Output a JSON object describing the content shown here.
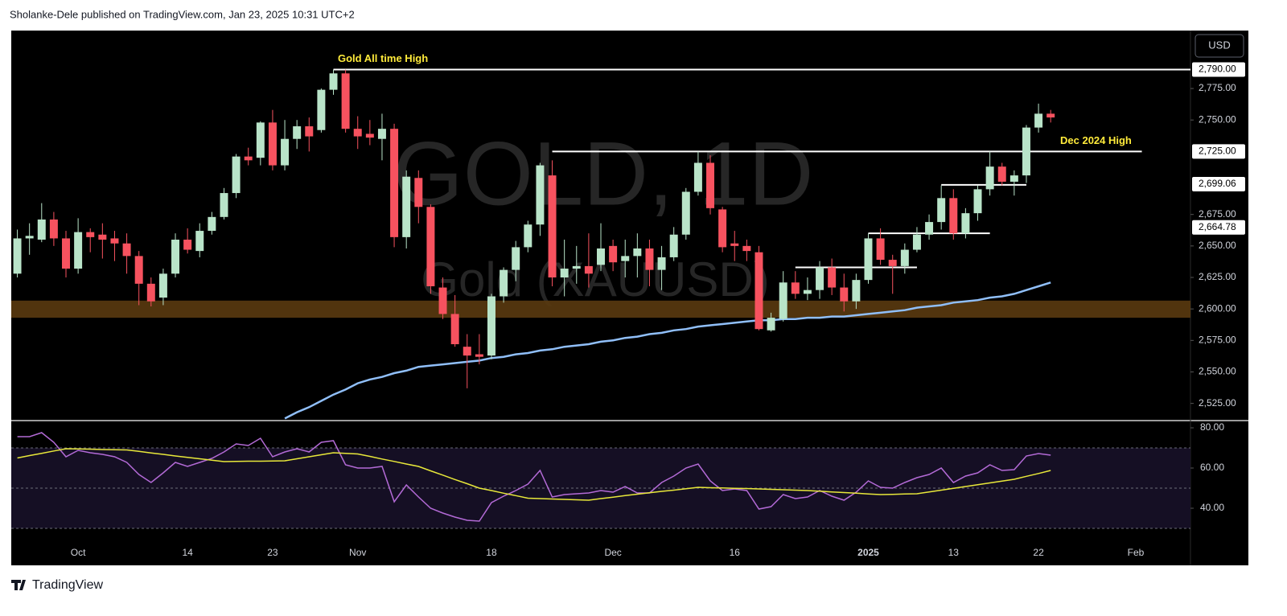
{
  "header": {
    "text": "Sholanke-Dele published on TradingView.com, Jan 23, 2025 10:31 UTC+2"
  },
  "footer": {
    "brand": "TradingView"
  },
  "currency_button": "USD",
  "chart_data": [
    {
      "type": "candlestick",
      "watermark_title": "GOLD, 1D",
      "watermark_subtitle": "Gold (XAUUSD)",
      "categories": [
        null,
        null,
        null,
        null,
        null,
        "Oct",
        null,
        null,
        null,
        null,
        null,
        null,
        null,
        null,
        "14",
        null,
        null,
        null,
        null,
        null,
        null,
        "23",
        null,
        null,
        null,
        null,
        null,
        null,
        "Nov",
        null,
        null,
        null,
        null,
        null,
        null,
        null,
        null,
        null,
        null,
        "18",
        null,
        null,
        null,
        null,
        null,
        null,
        null,
        null,
        null,
        "Dec",
        null,
        null,
        null,
        null,
        null,
        null,
        null,
        null,
        null,
        "16",
        null,
        null,
        null,
        null,
        null,
        null,
        null,
        null,
        null,
        null,
        "2025",
        null,
        null,
        null,
        null,
        null,
        null,
        "13",
        null,
        null,
        null,
        null,
        null,
        null,
        "22",
        null,
        null,
        null,
        null,
        null,
        null,
        null,
        "Feb",
        null,
        null,
        null,
        null
      ],
      "open": [
        2628,
        2656,
        2655,
        2671,
        2656,
        2632,
        2661,
        2659,
        2656,
        2652,
        2642,
        2620,
        2609,
        2628,
        2655,
        2646,
        2662,
        2673,
        2692,
        2721,
        2720,
        2748,
        2714,
        2735,
        2745,
        2742,
        2774,
        2787,
        2743,
        2739,
        2735,
        2743,
        2657,
        2704,
        2681,
        2617,
        2596,
        2570,
        2564,
        2563,
        2610,
        2631,
        2649,
        2667,
        2706,
        2625,
        2632,
        2634,
        2635,
        2650,
        2638,
        2642,
        2648,
        2631,
        2641,
        2659,
        2693,
        2716,
        2679,
        2652,
        2650,
        2645,
        2583,
        2592,
        2621,
        2612,
        2615,
        2633,
        2617,
        2606,
        2623,
        2656,
        2639,
        2634,
        2647,
        2659,
        2669,
        2688,
        2660,
        2676,
        2695,
        2713,
        2701,
        2706,
        2744,
        2755,
        null,
        null,
        null,
        null,
        null,
        null,
        null,
        null,
        null,
        null,
        null
      ],
      "high": [
        2663,
        2668,
        2684,
        2677,
        2662,
        2672,
        2664,
        2668,
        2662,
        2660,
        2646,
        2625,
        2632,
        2660,
        2664,
        2668,
        2677,
        2696,
        2723,
        2728,
        2749,
        2758,
        2750,
        2750,
        2752,
        2775,
        2790,
        2790,
        2753,
        2750,
        2755,
        2747,
        2710,
        2710,
        2683,
        2625,
        2611,
        2580,
        2580,
        2612,
        2633,
        2654,
        2670,
        2716,
        2718,
        2655,
        2650,
        2660,
        2668,
        2655,
        2655,
        2660,
        2655,
        2650,
        2665,
        2696,
        2725,
        2722,
        2681,
        2662,
        2655,
        2650,
        2597,
        2630,
        2630,
        2625,
        2638,
        2640,
        2628,
        2628,
        2660,
        2664,
        2643,
        2652,
        2665,
        2675,
        2698,
        2695,
        2680,
        2698,
        2725,
        2716,
        2710,
        2746,
        2763,
        2758,
        null,
        null,
        null,
        null,
        null,
        null,
        null,
        null,
        null,
        null,
        null
      ],
      "low": [
        2625,
        2643,
        2653,
        2650,
        2625,
        2628,
        2645,
        2640,
        2638,
        2628,
        2603,
        2602,
        2603,
        2625,
        2644,
        2641,
        2659,
        2671,
        2688,
        2714,
        2714,
        2710,
        2710,
        2727,
        2725,
        2740,
        2770,
        2740,
        2727,
        2730,
        2718,
        2649,
        2648,
        2668,
        2612,
        2592,
        2570,
        2537,
        2556,
        2560,
        2605,
        2622,
        2645,
        2658,
        2618,
        2610,
        2620,
        2617,
        2630,
        2630,
        2625,
        2625,
        2618,
        2615,
        2638,
        2655,
        2690,
        2675,
        2645,
        2638,
        2638,
        2583,
        2582,
        2590,
        2608,
        2607,
        2608,
        2611,
        2598,
        2600,
        2620,
        2635,
        2612,
        2628,
        2645,
        2655,
        2663,
        2655,
        2656,
        2670,
        2690,
        2698,
        2690,
        2700,
        2740,
        2748,
        null,
        null,
        null,
        null,
        null,
        null,
        null,
        null,
        null,
        null,
        null
      ],
      "close": [
        2656,
        2658,
        2671,
        2656,
        2632,
        2661,
        2657,
        2655,
        2652,
        2642,
        2620,
        2606,
        2628,
        2655,
        2647,
        2662,
        2673,
        2692,
        2721,
        2718,
        2748,
        2714,
        2735,
        2745,
        2737,
        2774,
        2787,
        2743,
        2737,
        2736,
        2743,
        2657,
        2705,
        2681,
        2618,
        2596,
        2572,
        2563,
        2562,
        2610,
        2631,
        2649,
        2667,
        2714,
        2625,
        2632,
        2634,
        2628,
        2648,
        2637,
        2642,
        2648,
        2631,
        2641,
        2659,
        2693,
        2716,
        2680,
        2649,
        2650,
        2646,
        2584,
        2593,
        2621,
        2612,
        2615,
        2633,
        2617,
        2606,
        2623,
        2656,
        2639,
        2634,
        2647,
        2659,
        2669,
        2688,
        2660,
        2676,
        2695,
        2713,
        2701,
        2706,
        2744,
        2755,
        2752,
        null,
        null,
        null,
        null,
        null,
        null,
        null,
        null,
        null,
        null,
        null
      ],
      "up_color": "#b9e4c9",
      "down_color": "#f7525f",
      "moving_average": {
        "color": "#90bff9",
        "values": [
          null,
          null,
          null,
          null,
          null,
          null,
          null,
          null,
          null,
          null,
          null,
          null,
          null,
          null,
          null,
          null,
          null,
          null,
          null,
          null,
          null,
          null,
          2513,
          2518,
          2522,
          2527,
          2532,
          2536,
          2541,
          2544,
          2546,
          2549,
          2551,
          2554,
          2555,
          2556,
          2557,
          2558,
          2559,
          2561,
          2562,
          2564,
          2565,
          2567,
          2568,
          2570,
          2571,
          2572,
          2574,
          2575,
          2577,
          2578,
          2580,
          2581,
          2583,
          2584,
          2586,
          2587,
          2588,
          2589,
          2590,
          2591,
          2591,
          2592,
          2592,
          2593,
          2593,
          2594,
          2594,
          2595,
          2596,
          2597,
          2598,
          2599,
          2601,
          2602,
          2603,
          2605,
          2606,
          2607,
          2609,
          2610,
          2612,
          2615,
          2618,
          2621,
          null,
          null,
          null,
          null,
          null,
          null,
          null,
          null,
          null,
          null,
          null
        ]
      },
      "ylim": [
        2512,
        2821
      ],
      "yticks": [
        {
          "value": 2525,
          "label": "2,525.00"
        },
        {
          "value": 2550,
          "label": "2,550.00"
        },
        {
          "value": 2575,
          "label": "2,575.00"
        },
        {
          "value": 2600,
          "label": "2,600.00"
        },
        {
          "value": 2625,
          "label": "2,625.00"
        },
        {
          "value": 2650,
          "label": "2,650.00"
        },
        {
          "value": 2675,
          "label": "2,675.00"
        },
        {
          "value": 2750,
          "label": "2,750.00"
        },
        {
          "value": 2775,
          "label": "2,775.00"
        }
      ],
      "levels": [
        {
          "value": 2790,
          "label": "2,790.00"
        },
        {
          "value": 2725,
          "label": "2,725.00"
        },
        {
          "value": 2699.06,
          "label": "2,699.06"
        },
        {
          "value": 2664.78,
          "label": "2,664.78"
        }
      ],
      "lines": [
        2790,
        2725,
        2698.5,
        2660,
        2633
      ],
      "zone": {
        "from": 2593,
        "to": 2606.6,
        "color": "#5a3a10"
      },
      "annotations": [
        {
          "text": "Gold All time High",
          "value": 2790
        },
        {
          "text": "Dec 2024 High",
          "value": 2725
        }
      ],
      "grid": false
    },
    {
      "type": "line",
      "series": [
        {
          "name": "RSI",
          "color": "#b36ad6",
          "values": [
            75.6,
            75.6,
            77.6,
            72.8,
            65.6,
            68.8,
            67.6,
            66.8,
            65.6,
            62.8,
            56.8,
            52.8,
            57.6,
            62.8,
            60.8,
            62.8,
            64.8,
            68,
            72,
            71.2,
            74.8,
            65.6,
            68,
            69.6,
            68,
            72.8,
            73.6,
            61.6,
            60,
            60,
            60.8,
            43.2,
            51.6,
            45.6,
            40,
            37.6,
            35.6,
            34,
            33.6,
            42.8,
            46,
            48.8,
            52,
            58.8,
            45.6,
            46.8,
            47.2,
            47.6,
            48.8,
            48,
            50.8,
            47.6,
            47.6,
            52.8,
            56,
            60,
            62,
            53.6,
            48.8,
            49.6,
            48.8,
            39.6,
            40.8,
            46.8,
            44.8,
            45.6,
            48.8,
            46,
            44,
            48,
            53.6,
            50.4,
            50,
            52.8,
            55.2,
            56.8,
            60,
            52.8,
            56,
            57.6,
            61.6,
            58.8,
            59.2,
            66,
            67.2,
            66.4,
            null,
            null,
            null,
            null,
            null,
            null,
            null,
            null,
            null,
            null,
            null
          ]
        },
        {
          "name": "RSI-based MA",
          "color": "#e8e83a",
          "values": [
            65,
            66.2,
            67.3,
            68.5,
            69.6,
            69.5,
            69.4,
            69.2,
            69.1,
            69,
            68.3,
            67.5,
            66.8,
            66,
            65.3,
            64.6,
            63.9,
            63.2,
            63.3,
            63.4,
            63.4,
            63.5,
            63.6,
            64.6,
            65.6,
            66.6,
            67.6,
            67.3,
            67,
            65.8,
            64.5,
            63.3,
            62,
            60.8,
            58.6,
            56.5,
            54.3,
            52.2,
            50,
            48.8,
            47.5,
            46.3,
            45,
            44.8,
            44.6,
            44.4,
            44.2,
            44,
            44.8,
            45.5,
            46.3,
            47,
            47.7,
            48.4,
            49,
            49.7,
            50.4,
            50.2,
            50.1,
            49.9,
            49.8,
            49.6,
            49.4,
            49.2,
            49,
            48.8,
            48.5,
            48.1,
            47.8,
            47.5,
            47.1,
            46.8,
            46.9,
            47.1,
            47.2,
            48.1,
            49,
            49.9,
            50.8,
            51.7,
            52.6,
            53.5,
            54.4,
            55.9,
            57.3,
            58.8,
            null,
            null,
            null,
            null,
            null,
            null,
            null,
            null,
            null,
            null,
            null
          ]
        }
      ],
      "ylim": [
        21.6,
        83.2
      ],
      "yticks": [
        {
          "value": 80,
          "label": "80.00"
        },
        {
          "value": 60,
          "label": "60.00"
        },
        {
          "value": 40,
          "label": "40.00"
        }
      ],
      "band": {
        "upper": 70,
        "middle": 50,
        "lower": 30,
        "color": "#150f24"
      }
    }
  ]
}
